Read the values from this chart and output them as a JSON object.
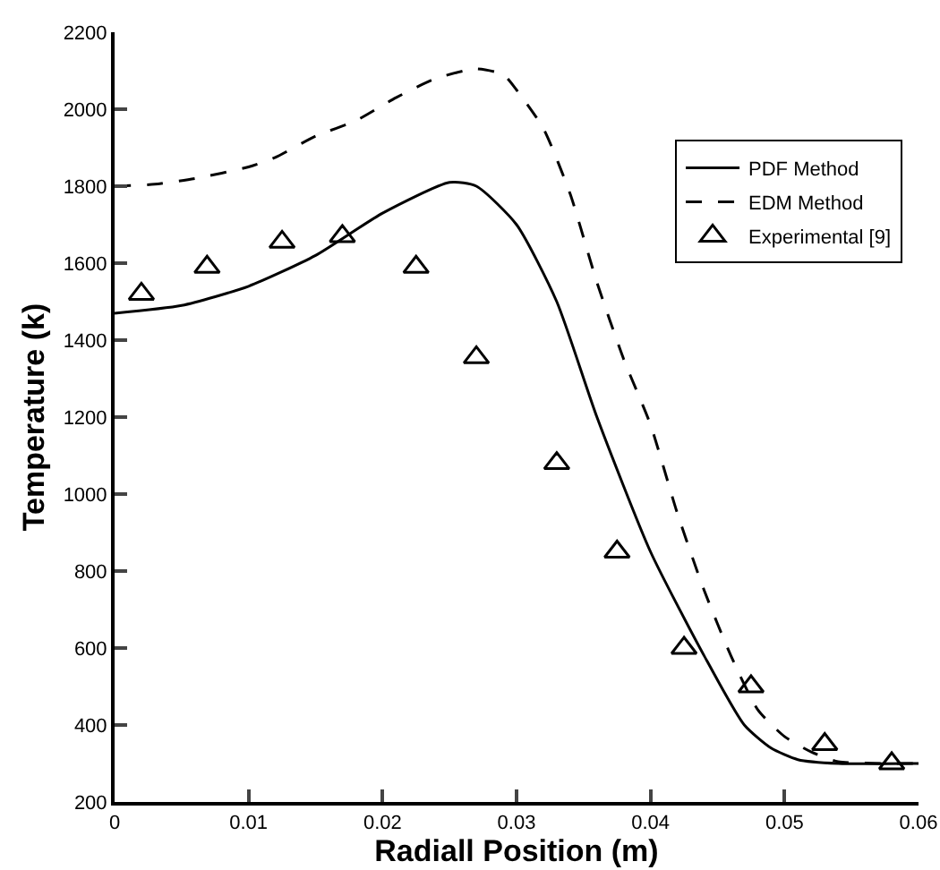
{
  "chart_data": {
    "type": "line",
    "xlabel": "Radiall Position (m)",
    "ylabel": "Temperature (k)",
    "xlim": [
      0,
      0.06
    ],
    "xticks": [
      0,
      0.01,
      0.02,
      0.03,
      0.04,
      0.05,
      0.06
    ],
    "ylim": [
      200,
      2200
    ],
    "yticks": [
      200,
      400,
      600,
      800,
      1000,
      1200,
      1400,
      1600,
      1800,
      2000,
      2200
    ],
    "grid": false,
    "legend": "top right",
    "series": [
      {
        "name": "PDF Method",
        "color": "#000000",
        "line_style": "solid",
        "marker": "none",
        "x": [
          0,
          0.005,
          0.01,
          0.015,
          0.02,
          0.025,
          0.027,
          0.03,
          0.033,
          0.036,
          0.04,
          0.044,
          0.047,
          0.049,
          0.051,
          0.054,
          0.06
        ],
        "values": [
          1470,
          1490,
          1540,
          1620,
          1730,
          1810,
          1800,
          1700,
          1500,
          1200,
          850,
          580,
          400,
          340,
          310,
          300,
          300
        ]
      },
      {
        "name": "EDM Method",
        "color": "#000000",
        "line_style": "dashed",
        "marker": "none",
        "x": [
          0,
          0.003,
          0.006,
          0.01,
          0.012,
          0.015,
          0.018,
          0.021,
          0.024,
          0.027,
          0.029,
          0.03,
          0.032,
          0.034,
          0.036,
          0.038,
          0.04,
          0.042,
          0.044,
          0.046,
          0.048,
          0.05,
          0.052,
          0.054,
          0.06
        ],
        "values": [
          1800,
          1805,
          1820,
          1850,
          1875,
          1930,
          1970,
          2030,
          2080,
          2105,
          2090,
          2050,
          1950,
          1780,
          1550,
          1350,
          1180,
          950,
          750,
          580,
          440,
          370,
          330,
          305,
          300
        ]
      },
      {
        "name": "Experimental [9]",
        "type": "scatter",
        "color": "#000000",
        "marker": "triangle",
        "x": [
          0.002,
          0.0069,
          0.0125,
          0.017,
          0.0225,
          0.027,
          0.033,
          0.0375,
          0.0425,
          0.0475,
          0.053,
          0.058
        ],
        "values": [
          1520,
          1590,
          1655,
          1670,
          1590,
          1355,
          1080,
          850,
          600,
          500,
          350,
          300
        ]
      }
    ]
  }
}
